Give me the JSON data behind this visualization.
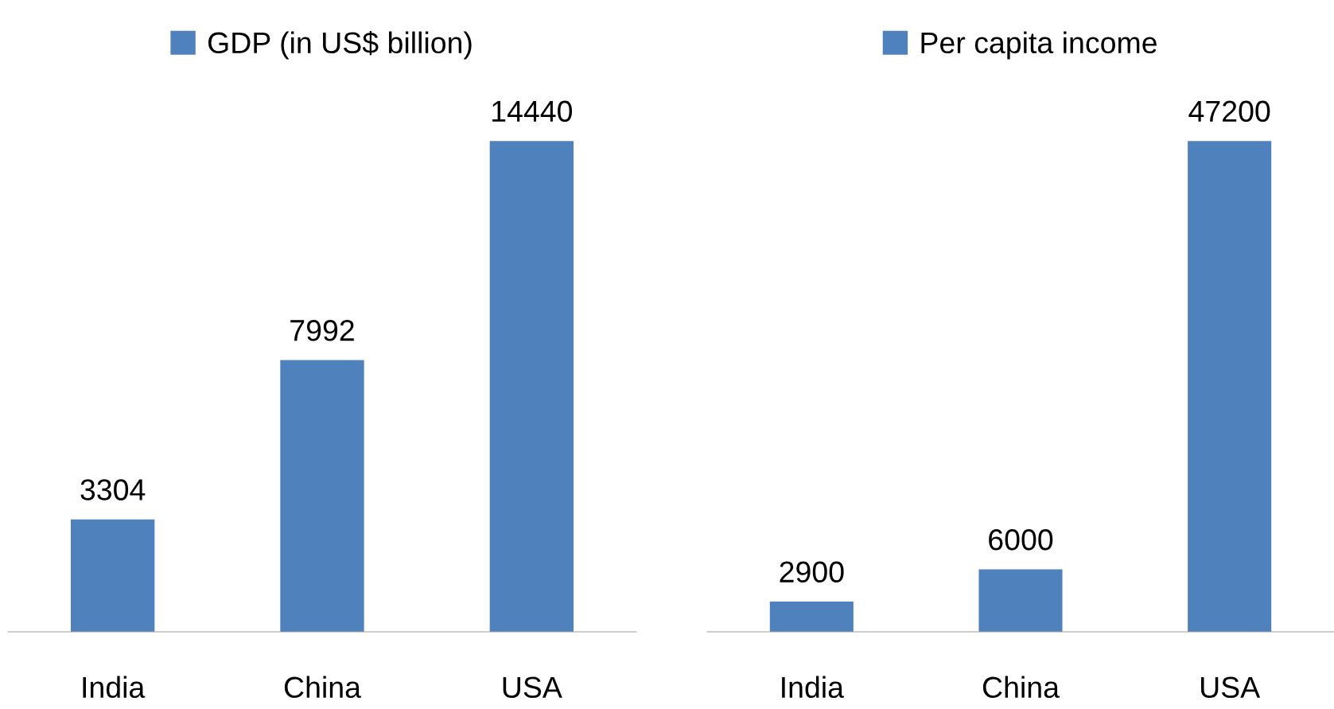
{
  "chart_data": [
    {
      "type": "bar",
      "categories": [
        "India",
        "China",
        "USA"
      ],
      "series": [
        {
          "name": "GDP (in US$ billion)",
          "color": "#4f81bd",
          "values": [
            3304,
            7992,
            14440
          ]
        }
      ],
      "data_labels": true,
      "legend": "top",
      "grid": false
    },
    {
      "type": "bar",
      "categories": [
        "India",
        "China",
        "USA"
      ],
      "series": [
        {
          "name": "Per capita income",
          "color": "#4f81bd",
          "values": [
            2900,
            6000,
            47200
          ]
        }
      ],
      "data_labels": true,
      "legend": "top",
      "grid": false
    }
  ]
}
